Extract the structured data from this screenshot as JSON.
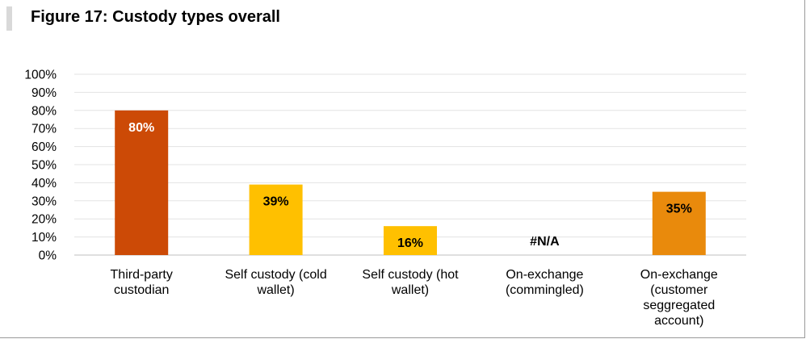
{
  "figure_title": "Figure 17: Custody types overall",
  "chart_data": {
    "type": "bar",
    "title": "Figure 17: Custody types overall",
    "xlabel": "",
    "ylabel": "",
    "ylim": [
      0,
      100
    ],
    "grid": true,
    "y_ticks": [
      "0%",
      "10%",
      "20%",
      "30%",
      "40%",
      "50%",
      "60%",
      "70%",
      "80%",
      "90%",
      "100%"
    ],
    "categories": [
      [
        "Third-party",
        "custodian"
      ],
      [
        "Self custody (cold",
        "wallet)"
      ],
      [
        "Self custody (hot",
        "wallet)"
      ],
      [
        "On-exchange",
        "(commingled)"
      ],
      [
        "On-exchange",
        "(customer",
        "seggregated",
        "account)"
      ]
    ],
    "values": [
      80,
      39,
      16,
      null,
      35
    ],
    "data_labels": [
      "80%",
      "39%",
      "16%",
      "#N/A",
      "35%"
    ],
    "colors": [
      "#cc4a06",
      "#ffc000",
      "#ffc000",
      "#ffc000",
      "#e98a0c"
    ],
    "label_colors": [
      "#ffffff",
      "#000000",
      "#000000",
      "#000000",
      "#000000"
    ]
  }
}
